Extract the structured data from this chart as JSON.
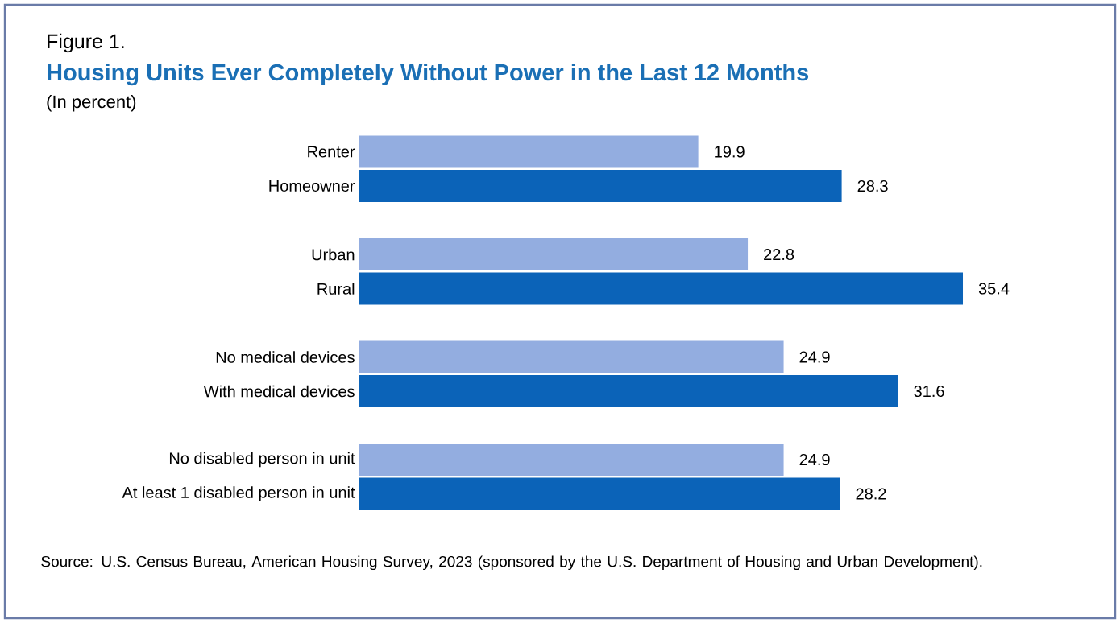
{
  "chart_data": {
    "type": "bar",
    "orientation": "horizontal",
    "title": "Housing Units Ever Completely Without Power in the Last 12 Months",
    "subtitle": "(In percent)",
    "annotations": [
      "Figure 1.",
      "Source: U.S. Census Bureau, American Housing Survey, 2023 (sponsored by the U.S. Department of Housing and Urban Development)."
    ],
    "categories": [
      "Renter",
      "Homeowner",
      "Urban",
      "Rural",
      "No medical devices",
      "With medical devices",
      "No disabled person in unit",
      "At least 1 disabled person in unit"
    ],
    "values": [
      19.9,
      28.3,
      22.8,
      35.4,
      24.9,
      31.6,
      24.9,
      28.2
    ],
    "colors": [
      "#93ade0",
      "#0b63b8",
      "#93ade0",
      "#0b63b8",
      "#93ade0",
      "#0b63b8",
      "#93ade0",
      "#0b63b8"
    ],
    "data_labels": true
  }
}
